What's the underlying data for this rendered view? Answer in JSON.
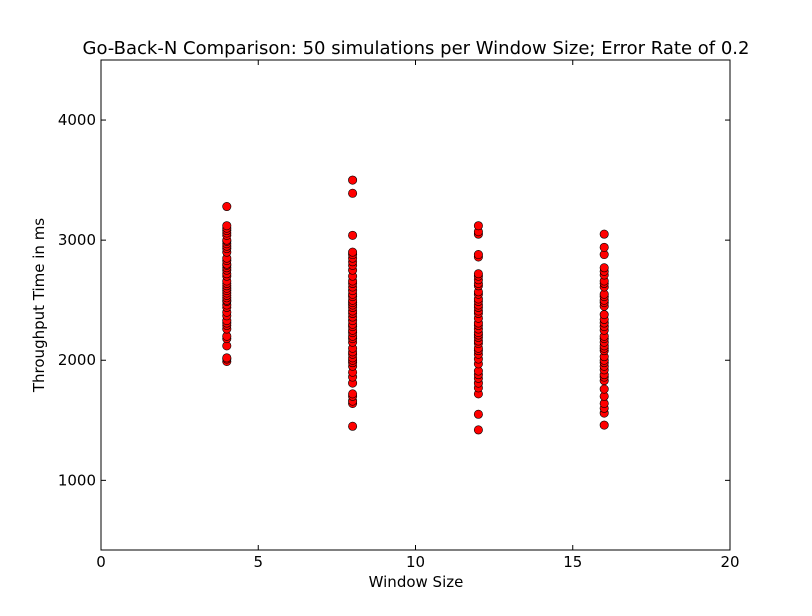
{
  "chart_data": {
    "type": "scatter",
    "title": "Go-Back-N Comparison: 50 simulations per Window Size; Error Rate of 0.2",
    "xlabel": "Window Size",
    "ylabel": "Throughput Time in ms",
    "xlim": [
      0,
      20
    ],
    "ylim": [
      420,
      4500
    ],
    "xticks": [
      0,
      5,
      10,
      15,
      20
    ],
    "xtick_labels": [
      "0",
      "5",
      "10",
      "15",
      "20"
    ],
    "yticks": [
      1000,
      2000,
      3000,
      4000
    ],
    "ytick_labels": [
      "1000",
      "2000",
      "3000",
      "4000"
    ],
    "grid": false,
    "legend": "none",
    "marker_color": "#ff0000",
    "marker_edge_color": "#000000",
    "series": [
      {
        "x": 4,
        "y": [
          1990,
          2010,
          2020,
          2120,
          2180,
          2200,
          2260,
          2290,
          2310,
          2330,
          2370,
          2400,
          2440,
          2460,
          2490,
          2500,
          2520,
          2540,
          2560,
          2580,
          2600,
          2620,
          2640,
          2660,
          2700,
          2720,
          2750,
          2770,
          2790,
          2800,
          2830,
          2850,
          2900,
          2930,
          2950,
          2970,
          2990,
          3000,
          3040,
          3060,
          3080,
          3100,
          3120,
          3280
        ]
      },
      {
        "x": 8,
        "y": [
          1450,
          1640,
          1660,
          1700,
          1720,
          1810,
          1860,
          1900,
          1950,
          1980,
          2000,
          2020,
          2050,
          2070,
          2100,
          2150,
          2180,
          2200,
          2230,
          2250,
          2280,
          2300,
          2330,
          2360,
          2390,
          2410,
          2440,
          2460,
          2480,
          2500,
          2530,
          2550,
          2580,
          2610,
          2640,
          2660,
          2700,
          2750,
          2790,
          2820,
          2850,
          2880,
          2900,
          3040,
          3390,
          3500
        ]
      },
      {
        "x": 12,
        "y": [
          1420,
          1550,
          1720,
          1770,
          1810,
          1850,
          1880,
          1910,
          1970,
          2010,
          2050,
          2080,
          2100,
          2140,
          2160,
          2190,
          2210,
          2230,
          2260,
          2290,
          2310,
          2350,
          2390,
          2410,
          2440,
          2460,
          2490,
          2510,
          2550,
          2570,
          2620,
          2640,
          2670,
          2700,
          2720,
          2860,
          2880,
          3050,
          3070,
          3120
        ]
      },
      {
        "x": 16,
        "y": [
          1460,
          1560,
          1600,
          1640,
          1700,
          1760,
          1830,
          1860,
          1880,
          1920,
          1950,
          1980,
          2000,
          2030,
          2080,
          2100,
          2120,
          2150,
          2180,
          2200,
          2250,
          2280,
          2310,
          2340,
          2380,
          2450,
          2480,
          2500,
          2530,
          2550,
          2610,
          2640,
          2660,
          2710,
          2740,
          2770,
          2880,
          2940,
          3050
        ]
      }
    ]
  }
}
